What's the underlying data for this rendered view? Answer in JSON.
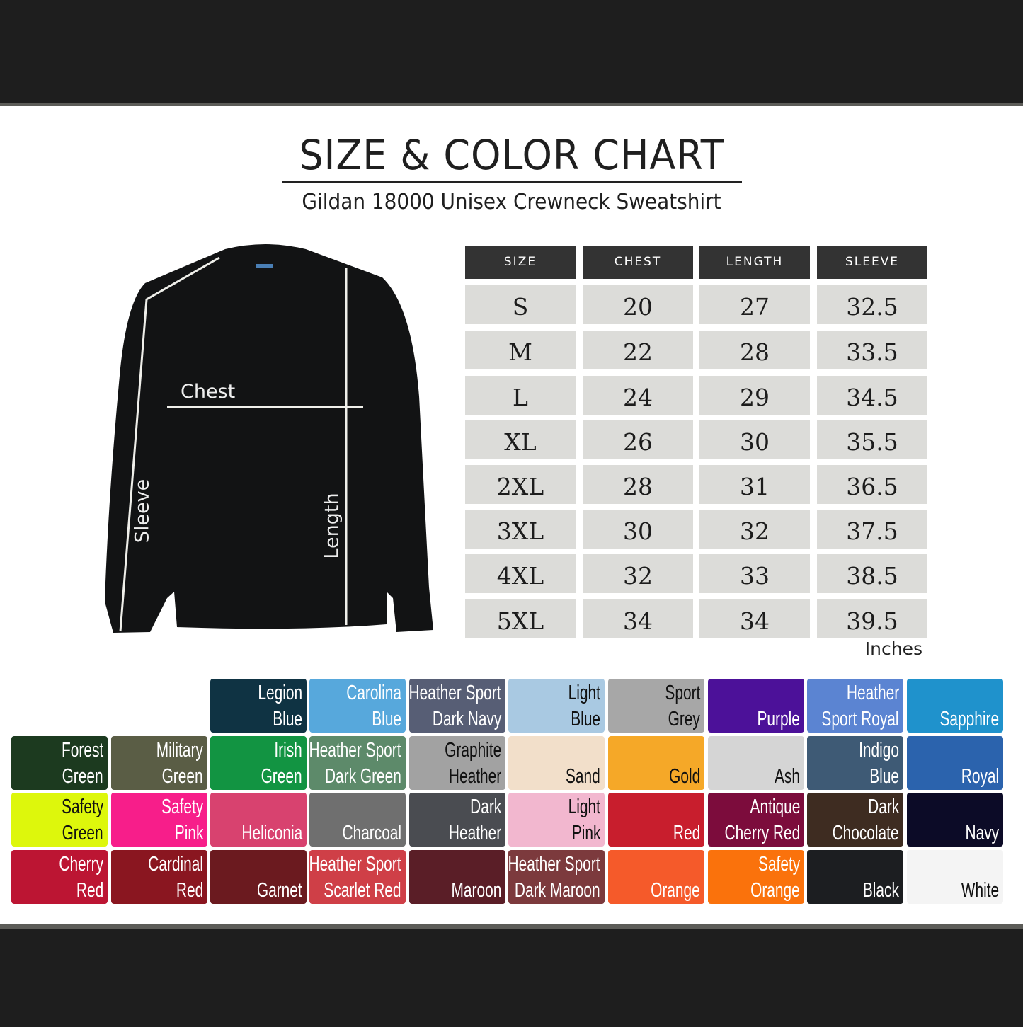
{
  "header": {
    "title": "SIZE & COLOR CHART",
    "subtitle": "Gildan 18000 Unisex Crewneck Sweatshirt"
  },
  "diagram": {
    "chest_label": "Chest",
    "sleeve_label": "Sleeve",
    "length_label": "Length",
    "garment_color": "#121314"
  },
  "size_table": {
    "columns": [
      "SIZE",
      "CHEST",
      "LENGTH",
      "SLEEVE"
    ],
    "rows": [
      [
        "S",
        "20",
        "27",
        "32.5"
      ],
      [
        "M",
        "22",
        "28",
        "33.5"
      ],
      [
        "L",
        "24",
        "29",
        "34.5"
      ],
      [
        "XL",
        "26",
        "30",
        "35.5"
      ],
      [
        "2XL",
        "28",
        "31",
        "36.5"
      ],
      [
        "3XL",
        "30",
        "32",
        "37.5"
      ],
      [
        "4XL",
        "32",
        "33",
        "38.5"
      ],
      [
        "5XL",
        "34",
        "34",
        "39.5"
      ]
    ],
    "units": "Inches"
  },
  "colors": [
    [
      null,
      null,
      {
        "lines": [
          "Legion",
          "Blue"
        ],
        "hex": "#0f3343",
        "text": "light"
      },
      {
        "lines": [
          "Carolina",
          "Blue"
        ],
        "hex": "#57a8dc",
        "text": "light"
      },
      {
        "lines": [
          "Heather Sport",
          "Dark Navy"
        ],
        "hex": "#575e75",
        "text": "light"
      },
      {
        "lines": [
          "Light",
          "Blue"
        ],
        "hex": "#a9c9e2",
        "text": "dark"
      },
      {
        "lines": [
          "Sport",
          "Grey"
        ],
        "hex": "#a7a7a7",
        "text": "dark"
      },
      {
        "lines": [
          "",
          "Purple"
        ],
        "hex": "#4c1199",
        "text": "light"
      },
      {
        "lines": [
          "Heather",
          "Sport Royal"
        ],
        "hex": "#5b84d2",
        "text": "light"
      },
      {
        "lines": [
          "",
          "Sapphire"
        ],
        "hex": "#1f92cc",
        "text": "light"
      }
    ],
    [
      {
        "lines": [
          "Forest",
          "Green"
        ],
        "hex": "#1c3a1f",
        "text": "light"
      },
      {
        "lines": [
          "Military",
          "Green"
        ],
        "hex": "#5a5d45",
        "text": "light"
      },
      {
        "lines": [
          "Irish",
          "Green"
        ],
        "hex": "#129442",
        "text": "light"
      },
      {
        "lines": [
          "Heather Sport",
          "Dark Green"
        ],
        "hex": "#5d8a6a",
        "text": "light"
      },
      {
        "lines": [
          "Graphite",
          "Heather"
        ],
        "hex": "#a2a2a2",
        "text": "dark"
      },
      {
        "lines": [
          "",
          "Sand"
        ],
        "hex": "#f2dfca",
        "text": "dark"
      },
      {
        "lines": [
          "",
          "Gold"
        ],
        "hex": "#f5a828",
        "text": "dark"
      },
      {
        "lines": [
          "",
          "Ash"
        ],
        "hex": "#d5d5d5",
        "text": "dark"
      },
      {
        "lines": [
          "Indigo",
          "Blue"
        ],
        "hex": "#3e5a75",
        "text": "light"
      },
      {
        "lines": [
          "",
          "Royal"
        ],
        "hex": "#2b63ad",
        "text": "light"
      }
    ],
    [
      {
        "lines": [
          "Safety",
          "Green"
        ],
        "hex": "#ddf70c",
        "text": "dark"
      },
      {
        "lines": [
          "Safety",
          "Pink"
        ],
        "hex": "#f71e8a",
        "text": "light"
      },
      {
        "lines": [
          "",
          "Heliconia"
        ],
        "hex": "#d8426f",
        "text": "light"
      },
      {
        "lines": [
          "",
          "Charcoal"
        ],
        "hex": "#6f6f6f",
        "text": "light"
      },
      {
        "lines": [
          "Dark",
          "Heather"
        ],
        "hex": "#4a4c51",
        "text": "light"
      },
      {
        "lines": [
          "Light",
          "Pink"
        ],
        "hex": "#f2b7cf",
        "text": "dark"
      },
      {
        "lines": [
          "",
          "Red"
        ],
        "hex": "#c81e2d",
        "text": "light"
      },
      {
        "lines": [
          "Antique",
          "Cherry Red"
        ],
        "hex": "#7c0c3c",
        "text": "light"
      },
      {
        "lines": [
          "Dark",
          "Chocolate"
        ],
        "hex": "#3e2c21",
        "text": "light"
      },
      {
        "lines": [
          "",
          "Navy"
        ],
        "hex": "#0c0b27",
        "text": "light"
      }
    ],
    [
      {
        "lines": [
          "Cherry",
          "Red"
        ],
        "hex": "#bc1533",
        "text": "light"
      },
      {
        "lines": [
          "Cardinal",
          "Red"
        ],
        "hex": "#8a1620",
        "text": "light"
      },
      {
        "lines": [
          "",
          "Garnet"
        ],
        "hex": "#6b1a1f",
        "text": "light"
      },
      {
        "lines": [
          "Heather Sport",
          "Scarlet Red"
        ],
        "hex": "#cf3f47",
        "text": "light"
      },
      {
        "lines": [
          "",
          "Maroon"
        ],
        "hex": "#5a1e27",
        "text": "light"
      },
      {
        "lines": [
          "Heather Sport",
          "Dark Maroon"
        ],
        "hex": "#7c3a3d",
        "text": "light"
      },
      {
        "lines": [
          "",
          "Orange"
        ],
        "hex": "#f55a2a",
        "text": "light"
      },
      {
        "lines": [
          "Safety",
          "Orange"
        ],
        "hex": "#fa720c",
        "text": "light"
      },
      {
        "lines": [
          "",
          "Black"
        ],
        "hex": "#1c1e21",
        "text": "light"
      },
      {
        "lines": [
          "",
          "White"
        ],
        "hex": "#f4f4f4",
        "text": "dark"
      }
    ]
  ]
}
